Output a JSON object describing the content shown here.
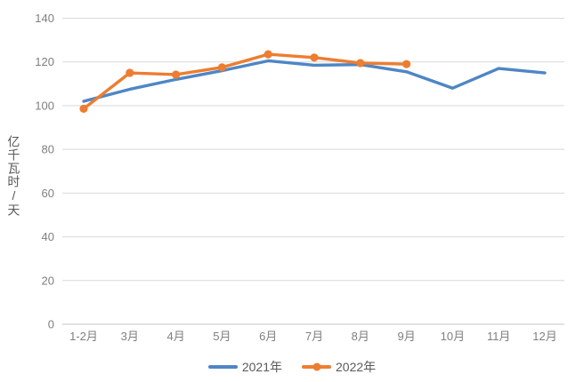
{
  "chart_data": {
    "type": "line",
    "title": "",
    "ylabel": "亿千瓦时/天",
    "xlabel": "",
    "ylim": [
      0,
      140
    ],
    "yticks": [
      0,
      20,
      40,
      60,
      80,
      100,
      120,
      140
    ],
    "grid": "horizontal",
    "legend_position": "bottom",
    "categories": [
      "1-2月",
      "3月",
      "4月",
      "5月",
      "6月",
      "7月",
      "8月",
      "9月",
      "10月",
      "11月",
      "12月"
    ],
    "series": [
      {
        "name": "2021年",
        "color": "#4E86C6",
        "marker": false,
        "values": [
          102,
          107.5,
          112,
          116,
          120.5,
          118.5,
          118.8,
          115.5,
          108,
          117,
          115
        ]
      },
      {
        "name": "2022年",
        "color": "#ED7D31",
        "marker": true,
        "values": [
          98.6,
          115,
          114.2,
          117.5,
          123.5,
          122,
          119.5,
          119
        ]
      }
    ]
  },
  "style": {
    "gridline_color": "#D9D9D9",
    "axis_line_color": "#C6C6C6",
    "tick_label_color": "#7F7F7F",
    "background": "#FFFFFF"
  }
}
